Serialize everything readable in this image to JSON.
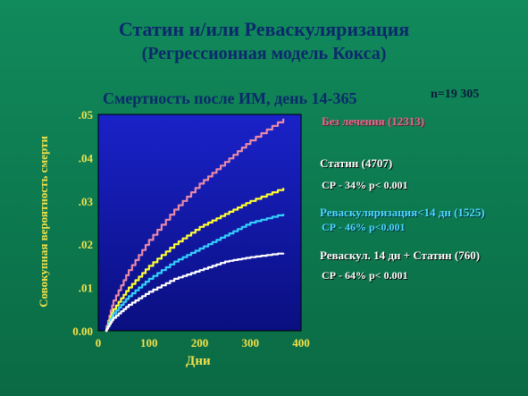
{
  "title_line1": "Статин и/или Реваскуляризация",
  "title_line2": "(Регрессионная модель Кокса)",
  "n_text": "n=19 305",
  "colors": {
    "plot_bg_top": "#1a22c8",
    "plot_bg_bottom": "#0a0f80",
    "none": "#e88aa8",
    "statin": "#ffff33",
    "revasc": "#33d0ff",
    "combined": "#ffffff",
    "axis_text": "#f2e14a"
  },
  "legend": {
    "none": "Без лечения (12313)",
    "statin": "Статин (4707)",
    "statin_sub": "СР - 34% p< 0.001",
    "revasc": "Реваскуляризация<14 дн (1525)",
    "revasc_sub": "СР - 46% p<0.001",
    "combined": "Реваскул. 14 дн + Статин (760)",
    "combined_sub": "СР - 64% p< 0.001"
  },
  "chart_data": {
    "type": "line",
    "title": "Смертность после ИМ, день 14-365",
    "xlabel": "Дни",
    "ylabel": "Совокупная вероятность смерти",
    "xlim": [
      0,
      400
    ],
    "ylim": [
      0,
      0.05
    ],
    "xticks": [
      "0",
      "100",
      "200",
      "300",
      "400"
    ],
    "yticks": [
      "0.00",
      ".01",
      ".02",
      ".03",
      ".04",
      ".05"
    ],
    "x": [
      14,
      30,
      60,
      100,
      150,
      200,
      250,
      300,
      365
    ],
    "series": [
      {
        "name": "Без лечения (12313)",
        "key": "none",
        "values": [
          0.0,
          0.007,
          0.014,
          0.021,
          0.028,
          0.034,
          0.039,
          0.044,
          0.049
        ]
      },
      {
        "name": "Статин (4707)",
        "key": "statin",
        "values": [
          0.0,
          0.005,
          0.01,
          0.015,
          0.02,
          0.024,
          0.027,
          0.03,
          0.033
        ]
      },
      {
        "name": "Реваскуляризация<14 дн (1525)",
        "key": "revasc",
        "values": [
          0.0,
          0.004,
          0.008,
          0.012,
          0.016,
          0.019,
          0.022,
          0.025,
          0.027
        ]
      },
      {
        "name": "Реваскул. 14 дн + Статин (760)",
        "key": "combined",
        "values": [
          0.0,
          0.003,
          0.006,
          0.009,
          0.012,
          0.014,
          0.016,
          0.017,
          0.018
        ]
      }
    ]
  }
}
